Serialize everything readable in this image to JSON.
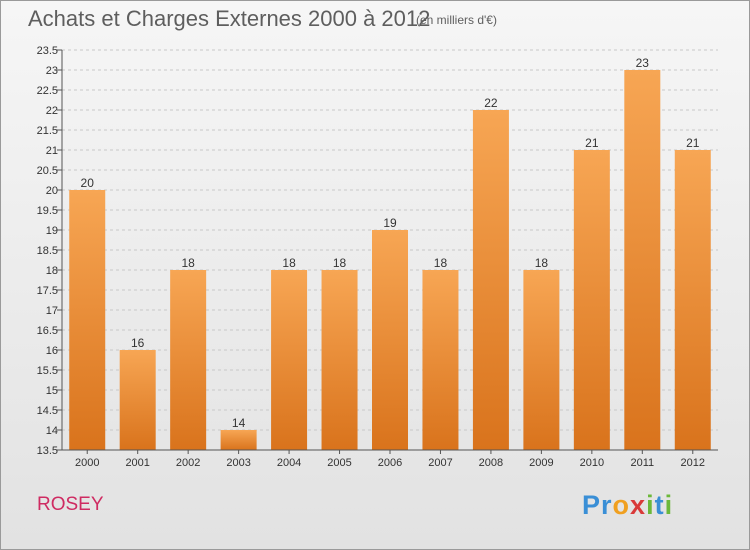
{
  "title": "Achats et Charges Externes 2000 à 2012",
  "unit_note": "(en milliers d'€)",
  "location": "ROSEY",
  "logo": {
    "letters": [
      "P",
      "r",
      "o",
      "x",
      "i",
      "t",
      "i"
    ],
    "colors": [
      "#3a8fd6",
      "#3a8fd6",
      "#f0a020",
      "#d93a3a",
      "#6cb83a",
      "#3a8fd6",
      "#6cb83a"
    ]
  },
  "colors": {
    "bar_top": "#f7a654",
    "bar_bottom": "#d9731c",
    "title": "#5e5e5e",
    "location": "#cf2b62"
  },
  "chart_data": {
    "type": "bar",
    "title": "Achats et Charges Externes 2000 à 2012",
    "categories": [
      "2000",
      "2001",
      "2002",
      "2003",
      "2004",
      "2005",
      "2006",
      "2007",
      "2008",
      "2009",
      "2010",
      "2011",
      "2012"
    ],
    "values": [
      20,
      16,
      18,
      14,
      18,
      18,
      19,
      18,
      22,
      18,
      21,
      23,
      21
    ],
    "data_labels": [
      "20",
      "16",
      "18",
      "14",
      "18",
      "18",
      "19",
      "18",
      "22",
      "18",
      "21",
      "23",
      "21"
    ],
    "ylim": [
      13.5,
      23.5
    ],
    "y_ticks": [
      "13.5",
      "14",
      "14.5",
      "15",
      "15.5",
      "16",
      "16.5",
      "17",
      "17.5",
      "18",
      "18.5",
      "19",
      "19.5",
      "20",
      "20.5",
      "21",
      "21.5",
      "22",
      "22.5",
      "23",
      "23.5"
    ],
    "grid": true,
    "xlabel": "",
    "ylabel": ""
  }
}
